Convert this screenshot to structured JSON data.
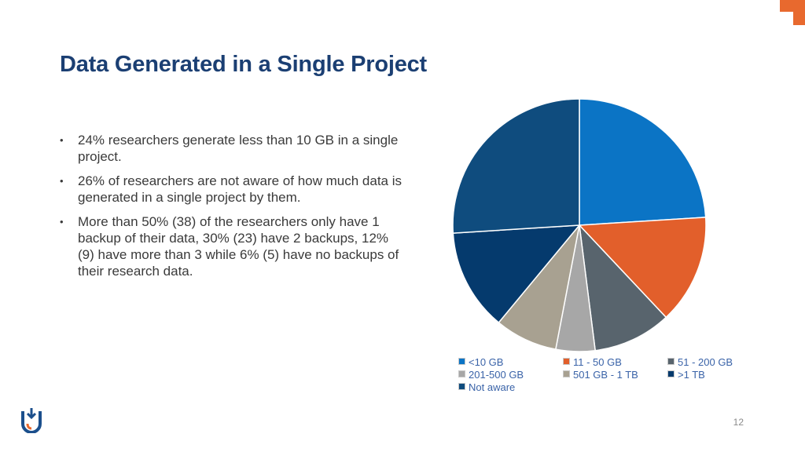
{
  "slide": {
    "title": "Data Generated in a Single Project",
    "page_number": "12",
    "accent_color": "#e8692e",
    "title_color": "#1b3f73"
  },
  "bullets": [
    {
      "text": "24% researchers generate less than 10 GB in a single project."
    },
    {
      "text": "26% of researchers are not aware of how much data is generated in a single project by them."
    },
    {
      "text": "More than 50% (38) of the researchers only have 1 backup of their data, 30% (23) have 2 backups, 12% (9) have more than 3 while 6% (5) have no backups of their research data."
    }
  ],
  "icons": {
    "bullet": "•",
    "logo": "university-logo-icon",
    "corner": "corner-accent-icon"
  },
  "chart_data": {
    "type": "pie",
    "title": "",
    "start_angle_deg": 0,
    "direction": "clockwise",
    "legend_position": "bottom",
    "slices": [
      {
        "label": "<10 GB",
        "value": 24,
        "color": "#0b74c5"
      },
      {
        "label": "11 - 50 GB",
        "value": 14,
        "color": "#e25f2b"
      },
      {
        "label": "51 - 200 GB",
        "value": 10,
        "color": "#58646d"
      },
      {
        "label": "201-500 GB",
        "value": 5,
        "color": "#a7a7a7"
      },
      {
        "label": "501 GB - 1 TB",
        "value": 8,
        "color": "#a8a191"
      },
      {
        "label": ">1 TB",
        "value": 13,
        "color": "#053a6d"
      },
      {
        "label": "Not aware",
        "value": 26,
        "color": "#0f4c7e"
      }
    ],
    "legend_order": [
      "<10 GB",
      "11 - 50 GB",
      "51 - 200 GB",
      "201-500 GB",
      "501 GB - 1 TB",
      ">1 TB",
      "Not aware"
    ]
  }
}
